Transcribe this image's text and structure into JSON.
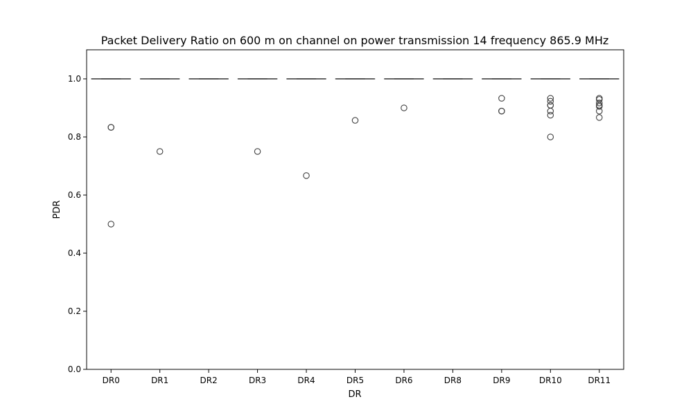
{
  "chart_data": {
    "type": "box",
    "title": "Packet Delivery Ratio on 600 m on channel on power transmission 14 frequency 865.9 MHz",
    "xlabel": "DR",
    "ylabel": "PDR",
    "ylim": [
      0,
      1.1
    ],
    "yticks": [
      "0.0",
      "0.2",
      "0.4",
      "0.6",
      "0.8",
      "1.0"
    ],
    "grid": false,
    "categories": [
      "DR0",
      "DR1",
      "DR2",
      "DR3",
      "DR4",
      "DR5",
      "DR6",
      "DR8",
      "DR9",
      "DR10",
      "DR11"
    ],
    "boxes": [
      {
        "category": "DR0",
        "min": 1.0,
        "q1": 1.0,
        "median": 1.0,
        "q3": 1.0,
        "max": 1.0,
        "outliers": [
          0.833,
          0.833,
          0.5
        ]
      },
      {
        "category": "DR1",
        "min": 1.0,
        "q1": 1.0,
        "median": 1.0,
        "q3": 1.0,
        "max": 1.0,
        "outliers": [
          0.75
        ]
      },
      {
        "category": "DR2",
        "min": 1.0,
        "q1": 1.0,
        "median": 1.0,
        "q3": 1.0,
        "max": 1.0,
        "outliers": []
      },
      {
        "category": "DR3",
        "min": 1.0,
        "q1": 1.0,
        "median": 1.0,
        "q3": 1.0,
        "max": 1.0,
        "outliers": [
          0.75
        ]
      },
      {
        "category": "DR4",
        "min": 1.0,
        "q1": 1.0,
        "median": 1.0,
        "q3": 1.0,
        "max": 1.0,
        "outliers": [
          0.667
        ]
      },
      {
        "category": "DR5",
        "min": 1.0,
        "q1": 1.0,
        "median": 1.0,
        "q3": 1.0,
        "max": 1.0,
        "outliers": [
          0.857
        ]
      },
      {
        "category": "DR6",
        "min": 1.0,
        "q1": 1.0,
        "median": 1.0,
        "q3": 1.0,
        "max": 1.0,
        "outliers": [
          0.9
        ]
      },
      {
        "category": "DR8",
        "min": 1.0,
        "q1": 1.0,
        "median": 1.0,
        "q3": 1.0,
        "max": 1.0,
        "outliers": []
      },
      {
        "category": "DR9",
        "min": 1.0,
        "q1": 1.0,
        "median": 1.0,
        "q3": 1.0,
        "max": 1.0,
        "outliers": [
          0.933,
          0.889,
          0.889
        ]
      },
      {
        "category": "DR10",
        "min": 1.0,
        "q1": 1.0,
        "median": 1.0,
        "q3": 1.0,
        "max": 1.0,
        "outliers": [
          0.933,
          0.923,
          0.909,
          0.909,
          0.889,
          0.875,
          0.8
        ]
      },
      {
        "category": "DR11",
        "min": 1.0,
        "q1": 1.0,
        "median": 1.0,
        "q3": 1.0,
        "max": 1.0,
        "outliers": [
          0.933,
          0.929,
          0.917,
          0.909,
          0.905,
          0.889,
          0.867
        ]
      }
    ],
    "colors": {
      "box_edge": "#3f3f3f",
      "outlier_edge": "#3f3f3f",
      "axis": "#000000"
    }
  }
}
